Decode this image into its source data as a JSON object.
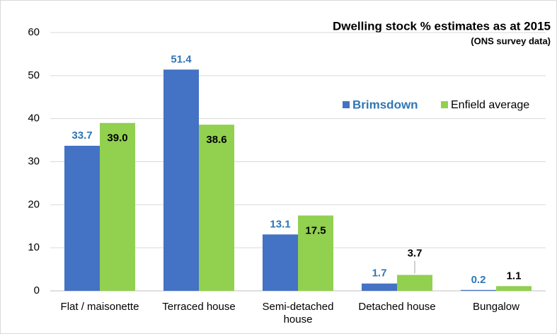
{
  "chart_data": {
    "type": "bar",
    "title": "Dwelling stock % estimates as at 2015",
    "subtitle": "(ONS survey data)",
    "categories": [
      "Flat / maisonette",
      "Terraced house",
      "Semi-detached house",
      "Detached house",
      "Bungalow"
    ],
    "series": [
      {
        "name": "Brimsdown",
        "color": "#4472c4",
        "values": [
          33.7,
          51.4,
          13.1,
          1.7,
          0.2
        ]
      },
      {
        "name": "Enfield average",
        "color": "#92d050",
        "values": [
          39.0,
          38.6,
          17.5,
          3.7,
          1.1
        ],
        "value_labels": [
          "39.0",
          "38.6",
          "17.5",
          "3.7",
          "1.1"
        ]
      }
    ],
    "ylim": [
      0,
      60
    ],
    "yticks": [
      0,
      10,
      20,
      30,
      40,
      50,
      60
    ],
    "grid": true
  }
}
